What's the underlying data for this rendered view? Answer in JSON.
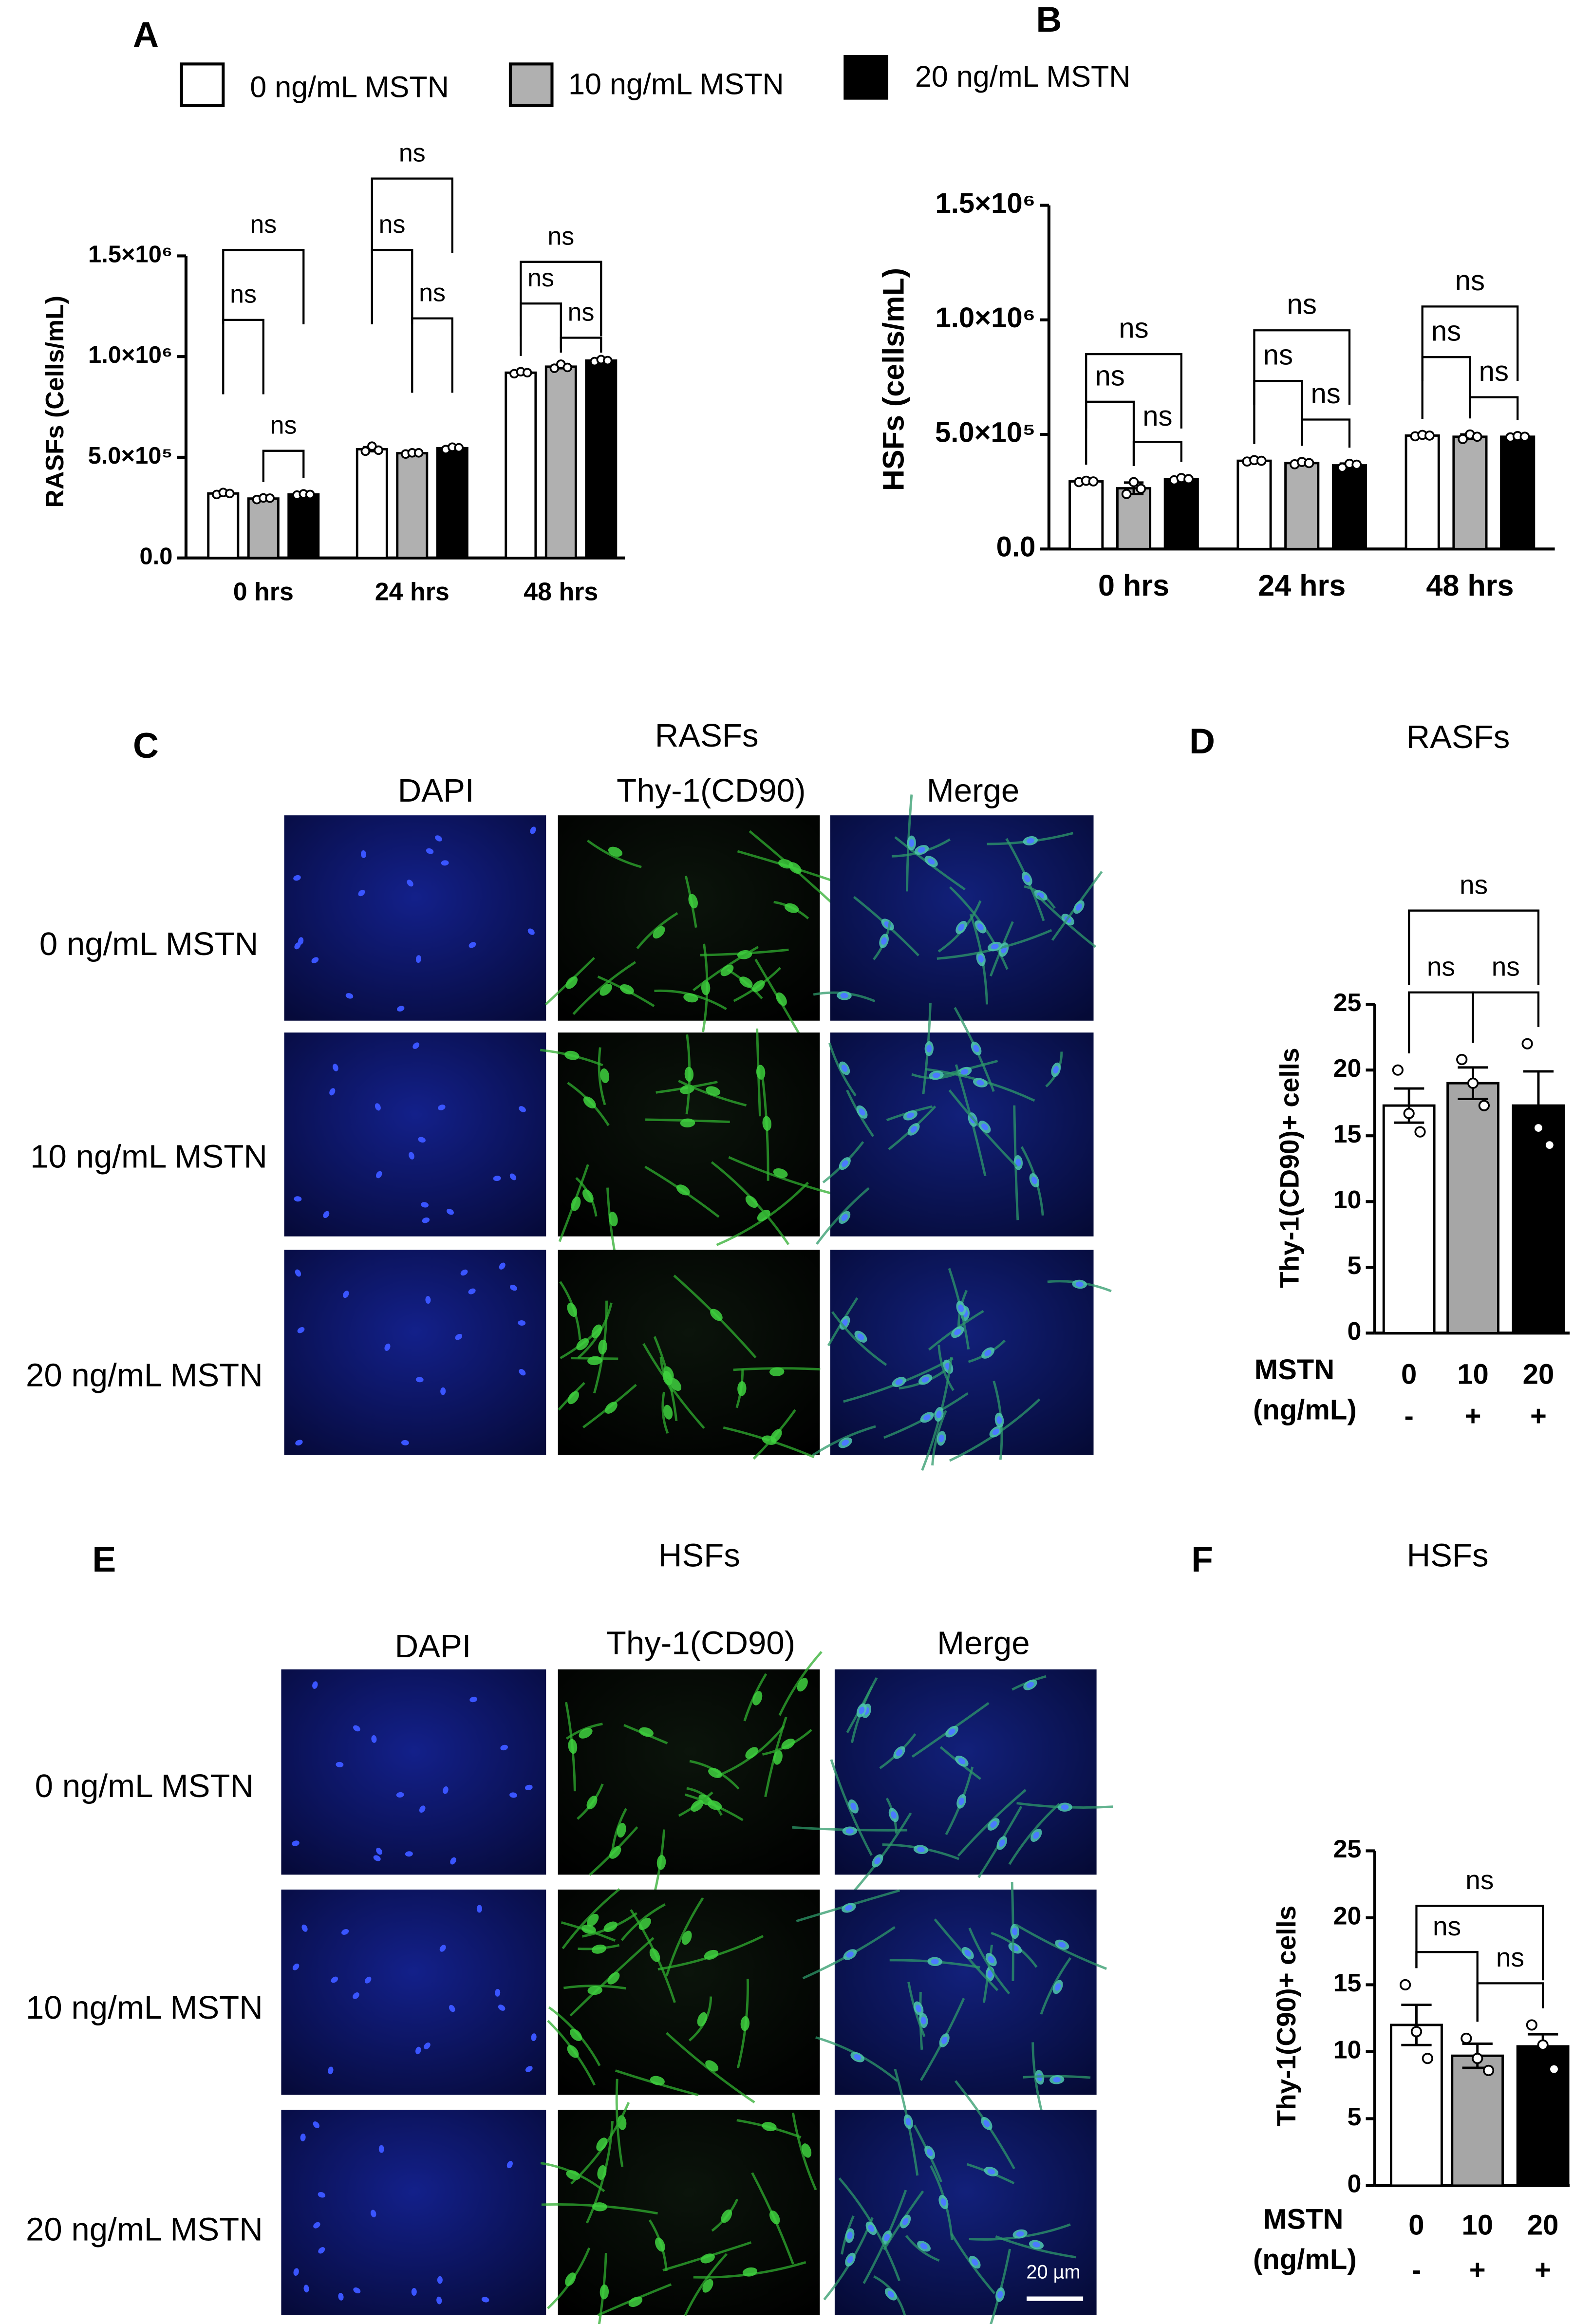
{
  "panel_labels": [
    "A",
    "B",
    "C",
    "D",
    "E",
    "F"
  ],
  "chart_data": [
    {
      "type": "bar",
      "y_label": "RASFs (Cells/mL)",
      "categories": [
        "0 hrs",
        "24 hrs",
        "48 hrs"
      ],
      "series": [
        {
          "name": "0 ng/mL MSTN",
          "color": "#ffffff",
          "values": [
            320000,
            540000,
            920000
          ],
          "errors": [
            6000,
            10000,
            5000
          ],
          "points": [
            [
              315000,
              325000,
              320000
            ],
            [
              530000,
              555000,
              535000
            ],
            [
              915000,
              925000,
              920000
            ]
          ]
        },
        {
          "name": "10 ng/mL MSTN",
          "color": "#b0b0b0",
          "values": [
            295000,
            520000,
            950000
          ],
          "errors": [
            5000,
            5000,
            8000
          ],
          "points": [
            [
              290000,
              298000,
              297000
            ],
            [
              516000,
              522000,
              522000
            ],
            [
              942000,
              962000,
              946000
            ]
          ]
        },
        {
          "name": "20 ng/mL MSTN",
          "color": "#000000",
          "values": [
            315000,
            545000,
            980000
          ],
          "errors": [
            5000,
            8000,
            5000
          ],
          "points": [
            [
              312000,
              318000,
              315000
            ],
            [
              538000,
              550000,
              547000
            ],
            [
              975000,
              985000,
              980000
            ]
          ]
        }
      ],
      "ylim": [
        0,
        1500000
      ],
      "yticks": [
        {
          "value": 0,
          "label": "0.0"
        },
        {
          "value": 500000,
          "label": "5.0×10⁵"
        },
        {
          "value": 1000000,
          "label": "1.0×10⁶"
        },
        {
          "value": 1500000,
          "label": "1.5×10⁶"
        }
      ],
      "annotations": [
        "ns",
        "ns",
        "ns",
        "ns",
        "ns",
        "ns",
        "ns",
        "ns",
        "ns"
      ]
    },
    {
      "type": "bar",
      "y_label": "HSFs (cells/mL)",
      "categories": [
        "0 hrs",
        "24 hrs",
        "48 hrs"
      ],
      "series": [
        {
          "color": "#ffffff",
          "values": [
            295000,
            385000,
            495000
          ],
          "errors": [
            5000,
            4000,
            5000
          ],
          "points": [
            [
              292000,
              298000,
              295000
            ],
            [
              382000,
              388000,
              385000
            ],
            [
              492000,
              498000,
              495000
            ]
          ]
        },
        {
          "color": "#b0b0b0",
          "values": [
            265000,
            375000,
            490000
          ],
          "errors": [
            25000,
            6000,
            10000
          ],
          "points": [
            [
              240000,
              292000,
              263000
            ],
            [
              370000,
              380000,
              375000
            ],
            [
              480000,
              500000,
              490000
            ]
          ]
        },
        {
          "color": "#000000",
          "values": [
            305000,
            365000,
            490000
          ],
          "errors": [
            5000,
            8000,
            4000
          ],
          "points": [
            [
              300000,
              310000,
              305000
            ],
            [
              355000,
              372000,
              368000
            ],
            [
              487000,
              493000,
              490000
            ]
          ]
        }
      ],
      "ylim": [
        0,
        1500000
      ],
      "yticks": [
        {
          "value": 0,
          "label": "0.0"
        },
        {
          "value": 500000,
          "label": "5.0×10⁵"
        },
        {
          "value": 1000000,
          "label": "1.0×10⁶"
        },
        {
          "value": 1500000,
          "label": "1.5×10⁶"
        }
      ],
      "annotations": [
        "ns",
        "ns",
        "ns",
        "ns",
        "ns",
        "ns",
        "ns",
        "ns",
        "ns"
      ]
    },
    {
      "type": "bar",
      "title": "RASFs",
      "y_label": "Thy-1(CD90)+ cells",
      "x_label": [
        "MSTN",
        "(ng/mL)"
      ],
      "categories": [
        "0",
        "10",
        "20"
      ],
      "treatment": [
        "-",
        "+",
        "+"
      ],
      "colors": [
        "#ffffff",
        "#a6a6a6",
        "#000000"
      ],
      "values": [
        17.3,
        19.0,
        17.3
      ],
      "errors": [
        1.3,
        1.2,
        2.6
      ],
      "points": [
        [
          20.0,
          16.7,
          15.3
        ],
        [
          20.8,
          19.0,
          17.3
        ],
        [
          22.0,
          15.6,
          14.3
        ]
      ],
      "ylim": [
        0,
        25
      ],
      "yticks": [
        0,
        5,
        10,
        15,
        20,
        25
      ],
      "annotations": [
        "ns",
        "ns",
        "ns"
      ]
    },
    {
      "type": "bar",
      "title": "HSFs",
      "y_label": "Thy-1(C90)+ cells",
      "x_label": [
        "MSTN",
        "(ng/mL)"
      ],
      "categories": [
        "0",
        "10",
        "20"
      ],
      "treatment": [
        "-",
        "+",
        "+"
      ],
      "colors": [
        "#ffffff",
        "#a6a6a6",
        "#000000"
      ],
      "values": [
        12.0,
        9.7,
        10.4
      ],
      "errors": [
        1.5,
        0.9,
        0.9
      ],
      "points": [
        [
          15.0,
          11.5,
          9.5
        ],
        [
          11.0,
          9.5,
          8.6
        ],
        [
          12.0,
          10.5,
          8.7
        ]
      ],
      "ylim": [
        0,
        25
      ],
      "yticks": [
        0,
        5,
        10,
        15,
        20,
        25
      ],
      "annotations": [
        "ns",
        "ns",
        "ns"
      ]
    }
  ],
  "image_panels": [
    {
      "title": "RASFs",
      "columns": [
        "DAPI",
        "Thy-1(CD90)",
        "Merge"
      ],
      "rows": [
        "0 ng/mL MSTN",
        "10 ng/mL MSTN",
        "20 ng/mL MSTN"
      ]
    },
    {
      "title": "HSFs",
      "columns": [
        "DAPI",
        "Thy-1(CD90)",
        "Merge"
      ],
      "rows": [
        "0 ng/mL MSTN",
        "10 ng/mL MSTN",
        "20 ng/mL MSTN"
      ],
      "scale_bar": "20 µm"
    }
  ]
}
